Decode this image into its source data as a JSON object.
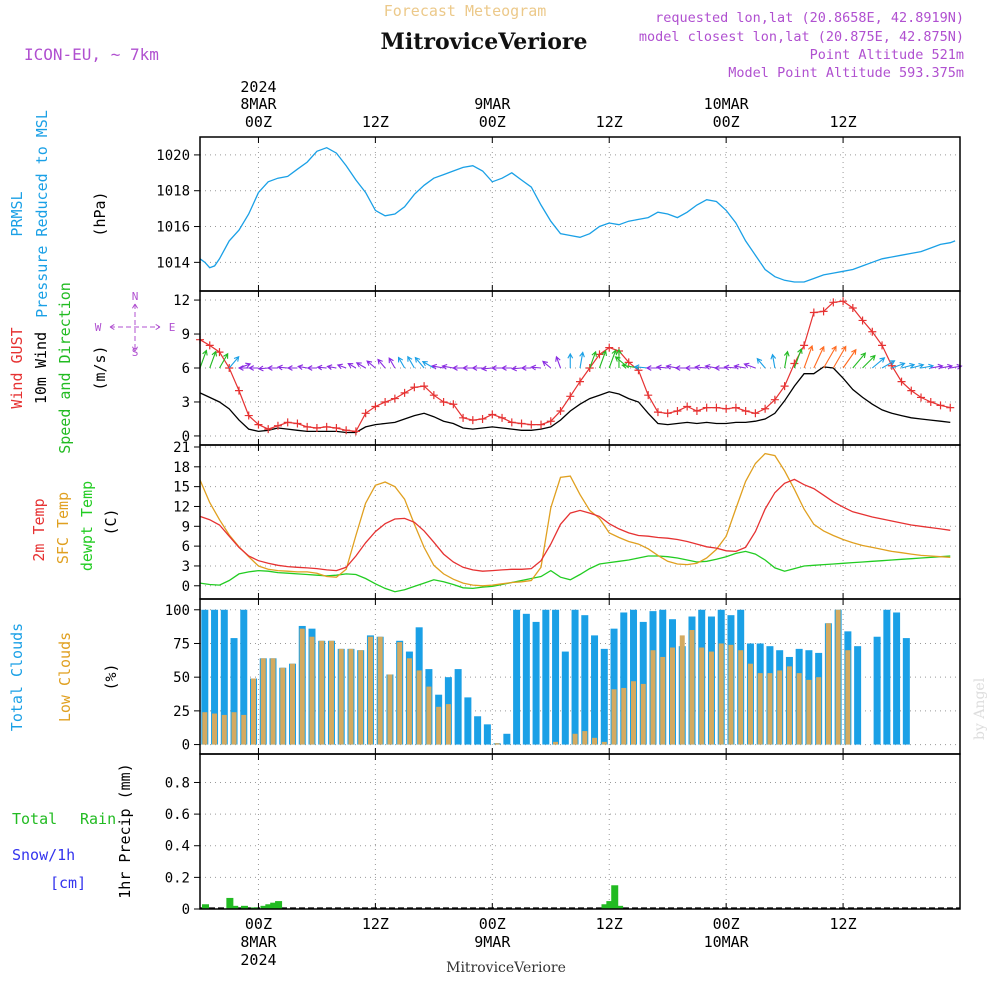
{
  "header": {
    "product": "Forecast Meteogram",
    "location": "MitroviceVeriore",
    "model": "ICON-EU, ~ 7km",
    "requested": "requested lon,lat (20.8658E, 42.8919N)",
    "closest": "model closest lon,lat (20.875E, 42.875N)",
    "point_alt": "Point Altitude 521m",
    "model_alt": "Model Point Altitude 593.375m",
    "watermark": "by Angel"
  },
  "colors": {
    "pressure": "#1aa0e6",
    "gust": "#e63232",
    "wind": "#000000",
    "dir": "#22bb22",
    "temp2m": "#e63232",
    "sfc": "#e0a020",
    "dewpt": "#22cc22",
    "total_cloud": "#1aa0e6",
    "low_cloud": "#d4aa60",
    "rain": "#22bb22",
    "snow": "#3333ee",
    "meta": "#b050d0"
  },
  "time_axis": {
    "hour_start": 0,
    "hour_end": 78,
    "top_ticks": [
      {
        "h": 6,
        "l1": "2024",
        "l2": "8MAR",
        "l3": "00Z"
      },
      {
        "h": 18,
        "l1": "",
        "l2": "",
        "l3": "12Z"
      },
      {
        "h": 30,
        "l1": "",
        "l2": "9MAR",
        "l3": "00Z"
      },
      {
        "h": 42,
        "l1": "",
        "l2": "",
        "l3": "12Z"
      },
      {
        "h": 54,
        "l1": "",
        "l2": "10MAR",
        "l3": "00Z"
      },
      {
        "h": 66,
        "l1": "",
        "l2": "",
        "l3": "12Z"
      }
    ],
    "bottom_ticks": [
      {
        "h": 6,
        "l1": "00Z",
        "l2": "8MAR",
        "l3": "2024"
      },
      {
        "h": 18,
        "l1": "12Z",
        "l2": "",
        "l3": ""
      },
      {
        "h": 30,
        "l1": "00Z",
        "l2": "9MAR",
        "l3": ""
      },
      {
        "h": 42,
        "l1": "12Z",
        "l2": "",
        "l3": ""
      },
      {
        "h": 54,
        "l1": "00Z",
        "l2": "10MAR",
        "l3": ""
      },
      {
        "h": 66,
        "l1": "12Z",
        "l2": "",
        "l3": ""
      }
    ],
    "footer": "MitroviceVeriore"
  },
  "chart_data": [
    {
      "type": "line",
      "id": "pressure",
      "title": "PRMSL Pressure Reduced to MSL",
      "ylabel": "(hPa)",
      "labels": [
        "PRMSL",
        "Pressure Reduced to MSL",
        "(hPa)"
      ],
      "ylim": [
        1012.4,
        1021.0
      ],
      "yticks": [
        1014,
        1016,
        1018,
        1020
      ],
      "x": [
        0,
        0.5,
        1,
        1.5,
        2,
        3,
        4,
        5,
        6,
        7,
        8,
        9,
        10,
        11,
        12,
        13,
        14,
        15,
        16,
        17,
        18,
        19,
        20,
        21,
        22,
        23,
        24,
        25,
        26,
        27,
        28,
        29,
        30,
        31,
        32,
        33,
        34,
        35,
        36,
        37,
        38,
        39,
        40,
        41,
        42,
        43,
        44,
        45,
        46,
        47,
        48,
        49,
        50,
        51,
        52,
        53,
        54,
        55,
        56,
        57,
        58,
        59,
        60,
        61,
        62,
        63,
        64,
        65,
        66,
        67,
        68,
        69,
        70,
        71,
        72,
        73,
        74,
        75,
        76,
        77,
        77.5
      ],
      "values": [
        1014.2,
        1014.0,
        1013.7,
        1013.8,
        1014.2,
        1015.2,
        1015.8,
        1016.7,
        1017.9,
        1018.5,
        1018.7,
        1018.8,
        1019.2,
        1019.6,
        1020.2,
        1020.4,
        1020.1,
        1019.4,
        1018.6,
        1017.9,
        1016.9,
        1016.6,
        1016.7,
        1017.1,
        1017.8,
        1018.3,
        1018.7,
        1018.9,
        1019.1,
        1019.3,
        1019.4,
        1019.1,
        1018.5,
        1018.7,
        1019.0,
        1018.6,
        1018.2,
        1017.2,
        1016.3,
        1015.6,
        1015.5,
        1015.4,
        1015.6,
        1016.0,
        1016.2,
        1016.1,
        1016.3,
        1016.4,
        1016.5,
        1016.8,
        1016.7,
        1016.5,
        1016.8,
        1017.2,
        1017.5,
        1017.4,
        1016.9,
        1016.2,
        1015.2,
        1014.4,
        1013.6,
        1013.2,
        1013.0,
        1012.9,
        1012.9,
        1013.1,
        1013.3,
        1013.4,
        1013.5,
        1013.6,
        1013.8,
        1014.0,
        1014.2,
        1014.3,
        1014.4,
        1014.5,
        1014.6,
        1014.8,
        1015.0,
        1015.1,
        1015.2
      ]
    },
    {
      "type": "line",
      "id": "wind",
      "labels": [
        "Wind GUST",
        "10m Wind",
        "Speed and Direction",
        "(m/s)"
      ],
      "ylim": [
        -0.8,
        12.8
      ],
      "yticks": [
        0,
        3,
        6,
        9,
        12
      ],
      "compass": {
        "n": "N",
        "s": "S",
        "e": "E",
        "w": "W"
      },
      "x": [
        0,
        1,
        2,
        3,
        4,
        5,
        6,
        7,
        8,
        9,
        10,
        11,
        12,
        13,
        14,
        15,
        16,
        17,
        18,
        19,
        20,
        21,
        22,
        23,
        24,
        25,
        26,
        27,
        28,
        29,
        30,
        31,
        32,
        33,
        34,
        35,
        36,
        37,
        38,
        39,
        40,
        41,
        42,
        43,
        44,
        45,
        46,
        47,
        48,
        49,
        50,
        51,
        52,
        53,
        54,
        55,
        56,
        57,
        58,
        59,
        60,
        61,
        62,
        63,
        64,
        65,
        66,
        67,
        68,
        69,
        70,
        71,
        72,
        73,
        74,
        75,
        76,
        77
      ],
      "gust": [
        8.5,
        8.0,
        7.4,
        6.0,
        4.0,
        1.8,
        1.0,
        0.6,
        0.9,
        1.2,
        1.1,
        0.8,
        0.7,
        0.8,
        0.7,
        0.5,
        0.4,
        2.0,
        2.6,
        3.0,
        3.3,
        3.8,
        4.3,
        4.4,
        3.6,
        3.0,
        2.8,
        1.6,
        1.4,
        1.5,
        1.9,
        1.6,
        1.2,
        1.1,
        1.0,
        1.0,
        1.3,
        2.2,
        3.5,
        4.8,
        6.0,
        7.2,
        7.8,
        7.5,
        6.5,
        5.8,
        3.6,
        2.1,
        2.0,
        2.2,
        2.6,
        2.2,
        2.5,
        2.5,
        2.4,
        2.5,
        2.2,
        2.0,
        2.4,
        3.2,
        4.4,
        6.4,
        8.0,
        10.9,
        11.0,
        11.8,
        11.9,
        11.3,
        10.2,
        9.2,
        8.0,
        6.2,
        4.8,
        4.0,
        3.4,
        3.0,
        2.7,
        2.5
      ],
      "speed": [
        3.8,
        3.4,
        3.0,
        2.4,
        1.4,
        0.6,
        0.4,
        0.5,
        0.7,
        0.6,
        0.5,
        0.4,
        0.4,
        0.4,
        0.4,
        0.3,
        0.3,
        0.8,
        1.0,
        1.1,
        1.2,
        1.5,
        1.8,
        2.0,
        1.7,
        1.3,
        1.1,
        0.7,
        0.6,
        0.7,
        0.8,
        0.7,
        0.6,
        0.5,
        0.5,
        0.6,
        0.8,
        1.4,
        2.2,
        2.8,
        3.3,
        3.6,
        3.9,
        3.7,
        3.3,
        3.0,
        2.0,
        1.1,
        1.0,
        1.1,
        1.2,
        1.1,
        1.2,
        1.1,
        1.1,
        1.2,
        1.2,
        1.3,
        1.5,
        2.0,
        3.1,
        4.4,
        5.5,
        5.5,
        6.1,
        6.0,
        5.1,
        4.1,
        3.4,
        2.8,
        2.3,
        2.0,
        1.8,
        1.6,
        1.5,
        1.4,
        1.3,
        1.2
      ],
      "dir_deg": [
        200,
        200,
        210,
        220,
        250,
        90,
        90,
        85,
        90,
        95,
        90,
        100,
        90,
        95,
        100,
        110,
        120,
        120,
        130,
        140,
        150,
        150,
        150,
        140,
        120,
        100,
        100,
        90,
        90,
        90,
        85,
        90,
        90,
        85,
        90,
        95,
        130,
        160,
        180,
        190,
        200,
        200,
        200,
        180,
        130,
        100,
        95,
        90,
        95,
        100,
        90,
        90,
        95,
        100,
        90,
        95,
        100,
        110,
        140,
        170,
        190,
        200,
        200,
        205,
        210,
        210,
        215,
        220,
        225,
        230,
        240,
        250,
        255,
        255,
        260,
        260,
        260,
        260
      ]
    },
    {
      "type": "line",
      "id": "temperature",
      "labels": [
        "2m Temp",
        "SFC Temp",
        "dewpt Temp",
        "(C)"
      ],
      "ylim": [
        -2,
        21.3
      ],
      "yticks": [
        0,
        3,
        6,
        9,
        12,
        15,
        18,
        21
      ],
      "x": [
        0,
        1,
        2,
        3,
        4,
        5,
        6,
        7,
        8,
        9,
        10,
        11,
        12,
        13,
        14,
        15,
        16,
        17,
        18,
        19,
        20,
        21,
        22,
        23,
        24,
        25,
        26,
        27,
        28,
        29,
        30,
        31,
        32,
        33,
        34,
        35,
        36,
        37,
        38,
        39,
        40,
        41,
        42,
        43,
        44,
        45,
        46,
        47,
        48,
        49,
        50,
        51,
        52,
        53,
        54,
        55,
        56,
        57,
        58,
        59,
        60,
        61,
        62,
        63,
        64,
        65,
        66,
        67,
        68,
        69,
        70,
        71,
        72,
        73,
        74,
        75,
        76,
        77
      ],
      "t2m": [
        10.5,
        10.0,
        9.2,
        7.5,
        5.8,
        4.5,
        3.8,
        3.4,
        3.1,
        2.9,
        2.8,
        2.7,
        2.6,
        2.4,
        2.3,
        2.8,
        4.5,
        6.5,
        8.2,
        9.4,
        10.1,
        10.2,
        9.6,
        8.3,
        6.6,
        4.8,
        3.6,
        2.8,
        2.4,
        2.2,
        2.3,
        2.4,
        2.5,
        2.5,
        2.6,
        3.8,
        6.3,
        9.3,
        11.0,
        11.4,
        11.0,
        10.5,
        9.4,
        8.6,
        8.0,
        7.6,
        7.5,
        7.3,
        7.2,
        7.0,
        6.7,
        6.3,
        5.9,
        5.7,
        5.3,
        5.2,
        5.8,
        8.2,
        11.6,
        14.1,
        15.5,
        16.1,
        15.3,
        14.7,
        13.7,
        12.7,
        11.9,
        11.2,
        10.8,
        10.4,
        10.1,
        9.8,
        9.5,
        9.2,
        9.0,
        8.8,
        8.6,
        8.4
      ],
      "sfc": [
        16.0,
        12.6,
        10.0,
        7.7,
        5.9,
        4.4,
        3.0,
        2.5,
        2.3,
        2.2,
        2.1,
        2.1,
        1.9,
        1.4,
        1.3,
        2.5,
        7.6,
        12.5,
        15.2,
        15.7,
        15.0,
        13.1,
        9.3,
        5.8,
        3.1,
        1.8,
        1.0,
        0.4,
        0.1,
        0.0,
        0.1,
        0.3,
        0.5,
        0.6,
        0.8,
        2.8,
        11.8,
        16.4,
        16.6,
        13.8,
        11.4,
        10.2,
        8.0,
        7.3,
        6.7,
        6.3,
        5.6,
        4.6,
        3.7,
        3.3,
        3.2,
        3.4,
        4.2,
        5.5,
        7.5,
        11.7,
        15.8,
        18.5,
        20.0,
        19.7,
        17.4,
        14.6,
        11.6,
        9.3,
        8.3,
        7.6,
        7.0,
        6.5,
        6.1,
        5.8,
        5.5,
        5.2,
        5.0,
        4.8,
        4.6,
        4.5,
        4.4,
        4.3
      ],
      "dewpt": [
        0.4,
        0.2,
        0.1,
        0.8,
        1.8,
        2.1,
        2.3,
        2.2,
        2.0,
        1.9,
        1.8,
        1.7,
        1.6,
        1.5,
        1.6,
        1.8,
        1.7,
        1.1,
        0.3,
        -0.4,
        -0.9,
        -0.6,
        -0.1,
        0.4,
        0.9,
        0.6,
        0.2,
        -0.3,
        -0.4,
        -0.2,
        -0.1,
        0.2,
        0.5,
        0.8,
        1.1,
        1.4,
        2.3,
        1.3,
        0.9,
        1.7,
        2.6,
        3.3,
        3.5,
        3.7,
        3.9,
        4.2,
        4.5,
        4.5,
        4.4,
        4.2,
        3.9,
        3.6,
        3.7,
        4.0,
        4.4,
        4.9,
        5.2,
        4.8,
        3.9,
        2.7,
        2.2,
        2.6,
        3.0,
        3.1,
        3.2,
        3.3,
        3.4,
        3.5,
        3.6,
        3.7,
        3.8,
        3.9,
        4.0,
        4.1,
        4.2,
        4.3,
        4.4,
        4.5
      ]
    },
    {
      "type": "bar",
      "id": "clouds",
      "labels": [
        "Total Clouds",
        "Low Clouds",
        "(%)"
      ],
      "ylim": [
        -7,
        108
      ],
      "yticks": [
        0,
        25,
        50,
        75,
        100
      ],
      "x": [
        0,
        1,
        2,
        3,
        4,
        5,
        6,
        7,
        8,
        9,
        10,
        11,
        12,
        13,
        14,
        15,
        16,
        17,
        18,
        19,
        20,
        21,
        22,
        23,
        24,
        25,
        26,
        27,
        28,
        29,
        30,
        31,
        32,
        33,
        34,
        35,
        36,
        37,
        38,
        39,
        40,
        41,
        42,
        43,
        44,
        45,
        46,
        47,
        48,
        49,
        50,
        51,
        52,
        53,
        54,
        55,
        56,
        57,
        58,
        59,
        60,
        61,
        62,
        63,
        64,
        65,
        66,
        67,
        68,
        69,
        70,
        71,
        72,
        73,
        74,
        75,
        76,
        77
      ],
      "total": [
        100,
        100,
        100,
        79,
        100,
        49,
        64,
        64,
        57,
        60,
        88,
        86,
        77,
        77,
        71,
        71,
        70,
        81,
        80,
        52,
        77,
        69,
        87,
        56,
        37,
        50,
        56,
        35,
        21,
        15,
        1,
        8,
        100,
        97,
        91,
        100,
        100,
        69,
        100,
        96,
        81,
        71,
        86,
        98,
        100,
        91,
        99,
        100,
        93,
        73,
        95,
        100,
        95,
        100,
        96,
        100,
        75,
        75,
        73,
        70,
        65,
        71,
        70,
        68,
        90,
        100,
        84,
        73,
        0,
        80,
        100,
        98,
        79,
        0,
        0,
        0,
        0,
        0
      ],
      "low": [
        24,
        23,
        22,
        24,
        22,
        49,
        64,
        64,
        57,
        60,
        86,
        80,
        77,
        77,
        71,
        71,
        70,
        80,
        80,
        52,
        76,
        64,
        55,
        43,
        28,
        30,
        0,
        0,
        0,
        0,
        1,
        0,
        0,
        0,
        0,
        0,
        2,
        0,
        8,
        10,
        5,
        2,
        41,
        42,
        47,
        45,
        70,
        65,
        72,
        81,
        85,
        72,
        69,
        75,
        74,
        70,
        60,
        53,
        53,
        55,
        58,
        53,
        48,
        50,
        90,
        100,
        70,
        0,
        0,
        0,
        0,
        0,
        0,
        0,
        0,
        0,
        0,
        0
      ]
    },
    {
      "type": "bar",
      "id": "precip",
      "labels": [
        "Total",
        "Rain",
        "Snow/1h",
        "[cm]",
        "1hr Precip (mm)"
      ],
      "ylim": [
        0,
        0.98
      ],
      "yticks": [
        0,
        0.2,
        0.4,
        0.6,
        0.8
      ],
      "ytick_labels": [
        "0",
        "0.2",
        "0.4",
        "0.6",
        "0.8"
      ],
      "x": [
        0,
        2.5,
        3,
        4,
        5,
        6,
        6.5,
        7,
        7.5,
        41,
        41.5,
        42,
        42.5
      ],
      "rain": [
        0.03,
        0.07,
        0.02,
        0.02,
        0.01,
        0.02,
        0.03,
        0.04,
        0.05,
        0.03,
        0.05,
        0.15,
        0.02
      ]
    }
  ]
}
